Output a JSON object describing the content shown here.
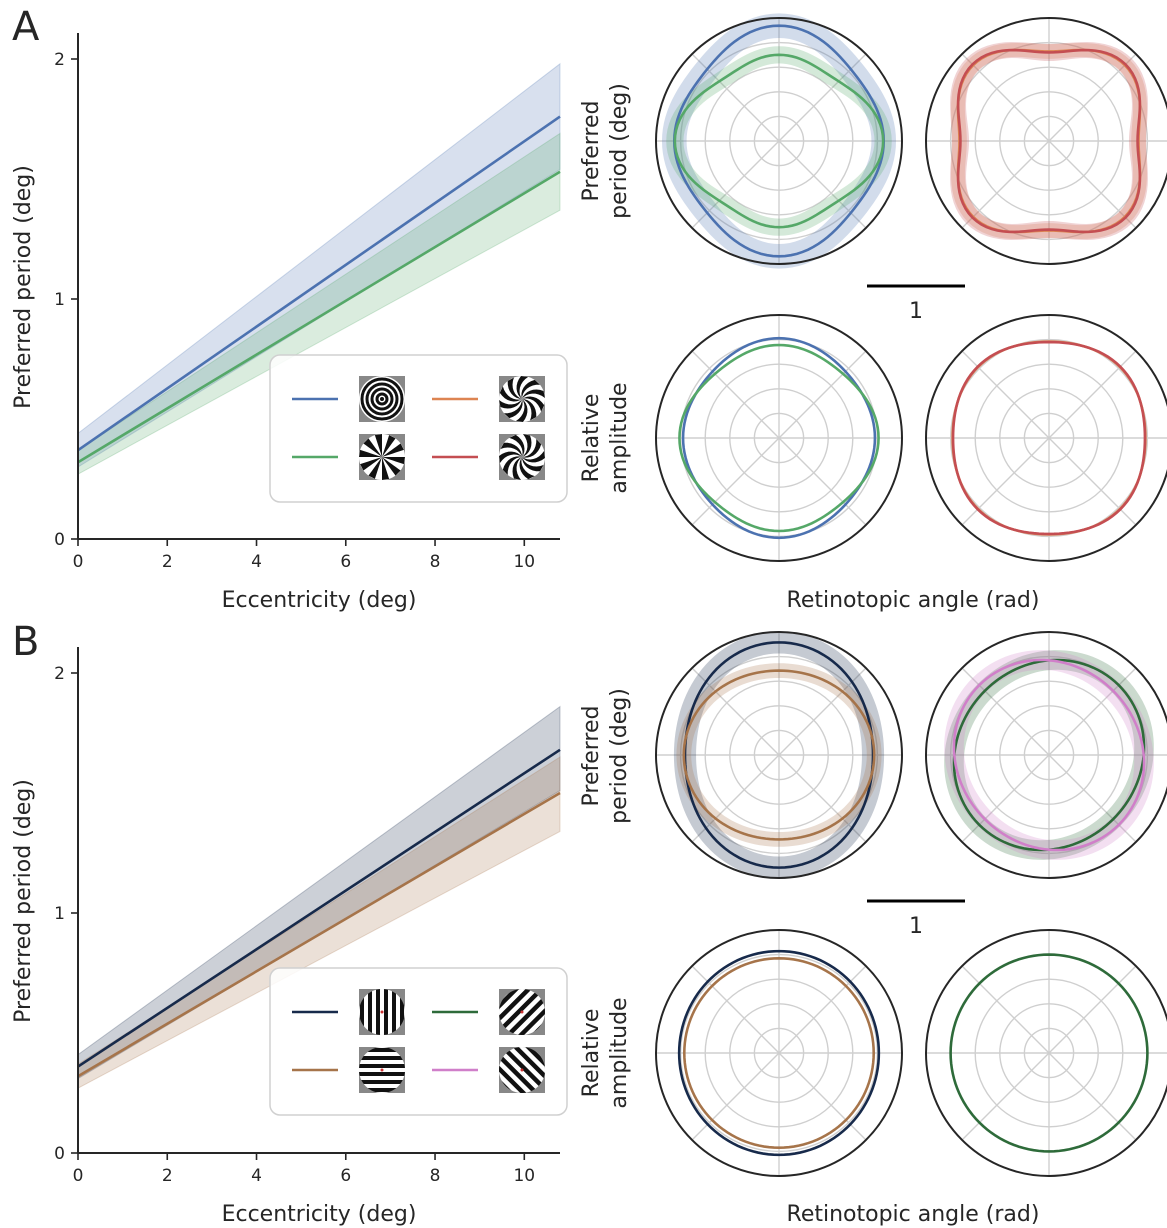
{
  "panels": [
    {
      "letter": "A",
      "line_chart": {
        "type": "line",
        "xlabel": "Eccentricity (deg)",
        "ylabel": "Preferred period (deg)",
        "xlim": [
          0,
          10.8
        ],
        "ylim": [
          0,
          2.1
        ],
        "xticks": [
          0,
          2,
          4,
          6,
          8,
          10
        ],
        "yticks": [
          0,
          1,
          2
        ],
        "series": [
          {
            "id": "radial",
            "color": "#4c72b0",
            "x": [
              0,
              10.8
            ],
            "y": [
              0.37,
              1.76
            ],
            "lower": [
              0.3,
              1.54
            ],
            "upper": [
              0.44,
              1.98
            ]
          },
          {
            "id": "angular",
            "color": "#55a868",
            "x": [
              0,
              10.8
            ],
            "y": [
              0.32,
              1.53
            ],
            "lower": [
              0.27,
              1.37
            ],
            "upper": [
              0.37,
              1.69
            ]
          }
        ],
        "legend": {
          "placement": "lower-right",
          "entries": [
            {
              "color": "#4c72b0",
              "icon": "radial-grating-icon"
            },
            {
              "color": "#dd8452",
              "icon": "forward-spiral-grating-icon"
            },
            {
              "color": "#55a868",
              "icon": "angular-grating-icon"
            },
            {
              "color": "#c44e52",
              "icon": "reverse-spiral-grating-icon"
            }
          ]
        }
      },
      "ylabel_period": "Preferred\nperiod (deg)",
      "ylabel_amplitude": "Relative\namplitude",
      "xlabel_polar": "Retinotopic angle (rad)",
      "scale_bar_label": "1",
      "polar_period": [
        {
          "series": [
            {
              "color": "#4c72b0",
              "r0": 0.86,
              "a2": -0.05,
              "a4": 0.04,
              "phase2": 0,
              "band": 0.1
            },
            {
              "color": "#55a868",
              "r0": 0.73,
              "a2": 0.1,
              "a4": 0.06,
              "phase2": 0,
              "band": 0.07
            }
          ]
        },
        {
          "series": [
            {
              "color": "#dd8452",
              "r0": 0.8,
              "a2": 0.0,
              "a4": -0.09,
              "phase2": 0,
              "band": 0.06
            },
            {
              "color": "#c44e52",
              "r0": 0.8,
              "a2": 0.0,
              "a4": -0.1,
              "phase2": 0,
              "band": 0.07
            }
          ]
        }
      ],
      "polar_amplitude": [
        {
          "series": [
            {
              "color": "#4c72b0",
              "r0": 0.78,
              "a2": -0.02,
              "a4": 0.02,
              "phase2": 0,
              "band": 0
            },
            {
              "color": "#55a868",
              "r0": 0.76,
              "a2": 0.035,
              "a4": 0.03,
              "phase2": 0,
              "band": 0
            }
          ]
        },
        {
          "series": [
            {
              "color": "#dd8452",
              "r0": 0.8,
              "a2": 0.0,
              "a4": -0.02,
              "phase2": 0,
              "band": 0
            },
            {
              "color": "#c44e52",
              "r0": 0.8,
              "a2": 0.0,
              "a4": -0.025,
              "phase2": 0,
              "band": 0
            }
          ]
        }
      ]
    },
    {
      "letter": "B",
      "line_chart": {
        "type": "line",
        "xlabel": "Eccentricity (deg)",
        "ylabel": "Preferred period (deg)",
        "xlim": [
          0,
          10.8
        ],
        "ylim": [
          0,
          2.1
        ],
        "xticks": [
          0,
          2,
          4,
          6,
          8,
          10
        ],
        "yticks": [
          0,
          1,
          2
        ],
        "series": [
          {
            "id": "vertical",
            "color": "#172a4b",
            "x": [
              0,
              10.8
            ],
            "y": [
              0.36,
              1.68
            ],
            "lower": [
              0.31,
              1.51
            ],
            "upper": [
              0.41,
              1.86
            ]
          },
          {
            "id": "horizontal",
            "color": "#a6744a",
            "x": [
              0,
              10.8
            ],
            "y": [
              0.32,
              1.5
            ],
            "lower": [
              0.27,
              1.34
            ],
            "upper": [
              0.37,
              1.65
            ]
          }
        ],
        "legend": {
          "placement": "lower-right",
          "entries": [
            {
              "color": "#172a4b",
              "icon": "vertical-grating-icon"
            },
            {
              "color": "#2e6b3a",
              "icon": "forward-diagonal-grating-icon"
            },
            {
              "color": "#a6744a",
              "icon": "horizontal-grating-icon"
            },
            {
              "color": "#d07fc9",
              "icon": "reverse-diagonal-grating-icon"
            }
          ]
        }
      },
      "ylabel_period": "Preferred\nperiod (deg)",
      "ylabel_amplitude": "Relative\namplitude",
      "xlabel_polar": "Retinotopic angle (rad)",
      "scale_bar_label": "1",
      "polar_period": [
        {
          "series": [
            {
              "color": "#172a4b",
              "r0": 0.84,
              "a2": -0.09,
              "a4": 0.0,
              "phase2": 0,
              "band": 0.09
            },
            {
              "color": "#a6744a",
              "r0": 0.73,
              "a2": 0.06,
              "a4": 0.0,
              "phase2": 0,
              "band": 0.06
            }
          ]
        },
        {
          "series": [
            {
              "color": "#2e6b3a",
              "r0": 0.77,
              "a2": 0.0,
              "a4": 0.0,
              "phase2": 0.35,
              "band": 0.08
            },
            {
              "color": "#d07fc9",
              "r0": 0.77,
              "a2": 0.0,
              "a4": 0.0,
              "phase2": -0.35,
              "band": 0.08
            }
          ]
        }
      ],
      "polar_amplitude": [
        {
          "series": [
            {
              "color": "#172a4b",
              "r0": 0.82,
              "a2": -0.01,
              "a4": 0.0,
              "phase2": 0,
              "band": 0
            },
            {
              "color": "#a6744a",
              "r0": 0.77,
              "a2": 0.0,
              "a4": 0.0,
              "phase2": 0,
              "band": 0
            }
          ]
        },
        {
          "series": [
            {
              "color": "#2e6b3a",
              "r0": 0.8,
              "a2": 0.0,
              "a4": 0.0,
              "phase2": 0,
              "band": 0
            }
          ]
        }
      ]
    }
  ],
  "chart_data": [
    {
      "type": "line",
      "panel": "A",
      "xlabel": "Eccentricity (deg)",
      "ylabel": "Preferred period (deg)",
      "xlim": [
        0,
        10.8
      ],
      "ylim": [
        0,
        2.1
      ],
      "series": [
        {
          "x": [
            0,
            10.8
          ],
          "values": [
            0.37,
            1.76
          ]
        },
        {
          "x": [
            0,
            10.8
          ],
          "values": [
            0.32,
            1.53
          ]
        }
      ]
    },
    {
      "type": "line",
      "panel": "B",
      "xlabel": "Eccentricity (deg)",
      "ylabel": "Preferred period (deg)",
      "xlim": [
        0,
        10.8
      ],
      "ylim": [
        0,
        2.1
      ],
      "series": [
        {
          "x": [
            0,
            10.8
          ],
          "values": [
            0.36,
            1.68
          ]
        },
        {
          "x": [
            0,
            10.8
          ],
          "values": [
            0.32,
            1.5
          ]
        }
      ]
    }
  ]
}
